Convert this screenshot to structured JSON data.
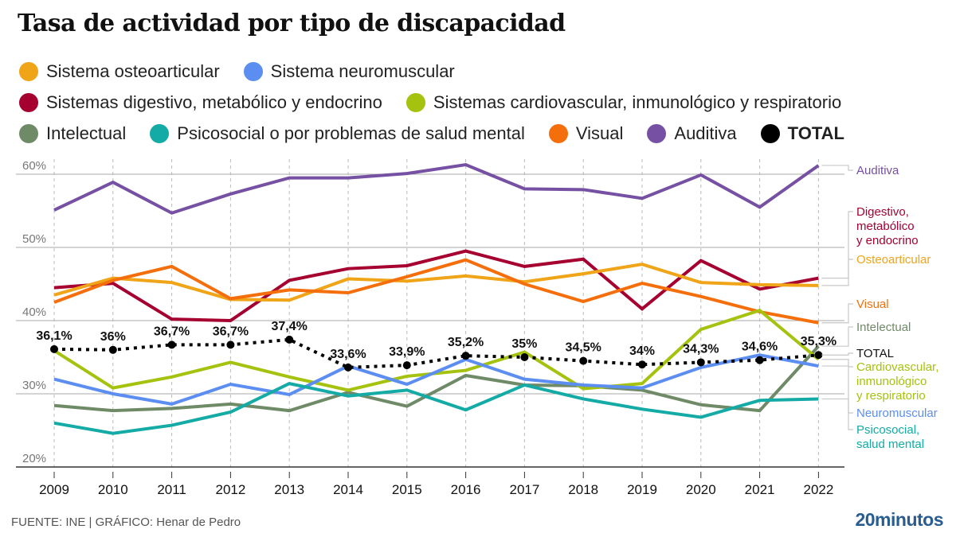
{
  "chart_data": {
    "type": "line",
    "title": "Tasa de actividad por tipo de discapacidad",
    "xlabel": "",
    "ylabel": "",
    "x": [
      "2009",
      "2010",
      "2011",
      "2012",
      "2013",
      "2014",
      "2015",
      "2016",
      "2017",
      "2018",
      "2019",
      "2020",
      "2021",
      "2022"
    ],
    "ylim": [
      20,
      62
    ],
    "yticks": [
      20,
      30,
      40,
      50,
      60
    ],
    "ytick_labels": [
      "20%",
      "30%",
      "40%",
      "50%",
      "60%"
    ],
    "grid": true,
    "legend_position": "top",
    "series": [
      {
        "key": "auditiva",
        "name": "Auditiva",
        "end_label": "Auditiva",
        "color": "#7650a3",
        "style": "solid",
        "values": [
          55.1,
          58.9,
          54.7,
          57.3,
          59.5,
          59.5,
          60.1,
          61.3,
          58.0,
          57.9,
          56.7,
          59.9,
          55.5,
          61.2
        ]
      },
      {
        "key": "digestivo",
        "name": "Sistemas digestivo, metabólico y endocrino",
        "end_label": "Digestivo,\nmetabólico\ny endocrino",
        "color": "#a50030",
        "style": "solid",
        "values": [
          44.5,
          45.1,
          40.2,
          40.0,
          45.5,
          47.1,
          47.5,
          49.5,
          47.4,
          48.4,
          41.6,
          48.2,
          44.3,
          45.8
        ]
      },
      {
        "key": "osteoarticular",
        "name": "Sistema osteoarticular",
        "end_label": "Osteoarticular",
        "color": "#f0a418",
        "style": "solid",
        "values": [
          43.5,
          45.8,
          45.2,
          42.9,
          42.8,
          45.7,
          45.4,
          46.1,
          45.3,
          46.4,
          47.7,
          45.2,
          44.9,
          44.8
        ]
      },
      {
        "key": "visual",
        "name": "Visual",
        "end_label": "Visual",
        "color": "#f46f0c",
        "style": "solid",
        "values": [
          42.5,
          45.5,
          47.4,
          43.0,
          44.2,
          43.8,
          46.0,
          48.3,
          45.0,
          42.6,
          45.1,
          43.3,
          41.2,
          39.7
        ]
      },
      {
        "key": "intelectual",
        "name": "Intelectual",
        "end_label": "Intelectual",
        "color": "#6f8a67",
        "style": "solid",
        "values": [
          28.4,
          27.7,
          28.0,
          28.6,
          27.7,
          30.2,
          28.3,
          32.5,
          31.2,
          31.1,
          30.5,
          28.5,
          27.7,
          36.5
        ]
      },
      {
        "key": "cardiovascular",
        "name": "Sistemas cardiovascular, inmunológico y respiratorio",
        "end_label": "Cardiovascular,\ninmunológico\ny respiratorio",
        "color": "#a5c20e",
        "style": "solid",
        "values": [
          35.9,
          30.8,
          32.3,
          34.3,
          32.3,
          30.5,
          32.4,
          33.2,
          35.7,
          30.7,
          31.4,
          38.8,
          41.4,
          34.7
        ]
      },
      {
        "key": "neuromuscular",
        "name": "Sistema neuromuscular",
        "end_label": "Neuromuscular",
        "color": "#5b8ef0",
        "style": "solid",
        "values": [
          32.0,
          30.0,
          28.6,
          31.3,
          29.9,
          33.8,
          31.3,
          34.7,
          32.0,
          31.2,
          30.8,
          33.6,
          35.3,
          33.8
        ]
      },
      {
        "key": "psicosocial",
        "name": "Psicosocial o por problemas de salud mental",
        "end_label": "Psicosocial,\nsalud mental",
        "color": "#14aaa6",
        "style": "solid",
        "values": [
          26.0,
          24.6,
          25.7,
          27.5,
          31.4,
          29.7,
          30.5,
          27.8,
          31.2,
          29.3,
          27.9,
          26.8,
          29.1,
          29.3
        ]
      },
      {
        "key": "total",
        "name": "TOTAL",
        "end_label": "TOTAL",
        "color": "#000000",
        "style": "dotted",
        "values": [
          36.1,
          36.0,
          36.7,
          36.7,
          37.4,
          33.6,
          33.9,
          35.2,
          35.0,
          34.5,
          34.0,
          34.3,
          34.6,
          35.3
        ],
        "data_labels": [
          "36,1%",
          "36%",
          "36,7%",
          "36,7%",
          "37,4%",
          "33,6%",
          "33,9%",
          "35,2%",
          "35%",
          "34,5%",
          "34%",
          "34,3%",
          "34,6%",
          "35,3%"
        ]
      }
    ],
    "legend": [
      [
        {
          "label": "Sistema osteoarticular",
          "color": "#f0a418"
        },
        {
          "label": "Sistema neuromuscular",
          "color": "#5b8ef0"
        }
      ],
      [
        {
          "label": "Sistemas digestivo, metabólico y endocrino",
          "color": "#a50030"
        },
        {
          "label": "Sistemas cardiovascular, inmunológico y respiratorio",
          "color": "#a5c20e"
        }
      ],
      [
        {
          "label": "Intelectual",
          "color": "#6f8a67"
        },
        {
          "label": "Psicosocial o por problemas de salud mental",
          "color": "#14aaa6"
        },
        {
          "label": "Visual",
          "color": "#f46f0c"
        },
        {
          "label": "Auditiva",
          "color": "#7650a3"
        },
        {
          "label": "TOTAL",
          "color": "#000000",
          "bold": true
        }
      ]
    ]
  },
  "footer": {
    "source": "FUENTE: INE  |  GRÁFICO: Henar de Pedro",
    "brand": "20minutos"
  }
}
